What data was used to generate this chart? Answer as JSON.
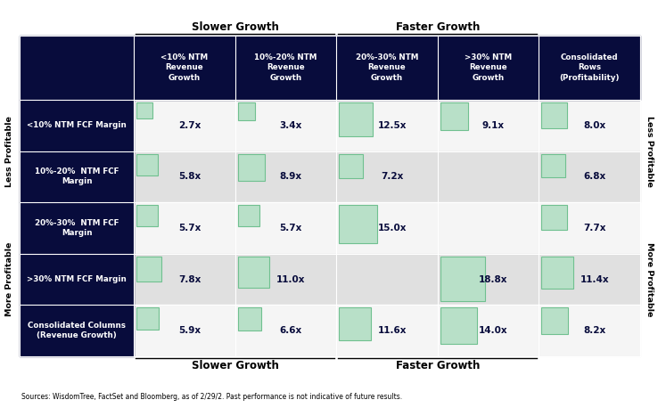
{
  "col_headers": [
    "<10% NTM\nRevenue\nGrowth",
    "10%-20% NTM\nRevenue\nGrowth",
    "20%-30% NTM\nRevenue\nGrowth",
    ">30% NTM\nRevenue\nGrowth",
    "Consolidated\nRows\n(Profitability)"
  ],
  "row_headers": [
    "<10% NTM FCF Margin",
    "10%-20%  NTM FCF\nMargin",
    "20%-30%  NTM FCF\nMargin",
    ">30% NTM FCF Margin",
    "Consolidated Columns\n(Revenue Growth)"
  ],
  "values": [
    [
      2.7,
      3.4,
      12.5,
      9.1,
      8.0
    ],
    [
      5.8,
      8.9,
      7.2,
      null,
      6.8
    ],
    [
      5.7,
      5.7,
      15.0,
      null,
      7.7
    ],
    [
      7.8,
      11.0,
      null,
      18.8,
      11.4
    ],
    [
      5.9,
      6.6,
      11.6,
      14.0,
      8.2
    ]
  ],
  "slower_growth_label_top": "Slower Growth",
  "faster_growth_label_top": "Faster Growth",
  "slower_growth_label_bot": "Slower Growth",
  "faster_growth_label_bot": "Faster Growth",
  "less_profitable_left": "Less Profitable",
  "more_profitable_left": "More Profitable",
  "less_profitable_right": "Less Profitable",
  "more_profitable_right": "More Profitable",
  "footnote": "Sources: WisdomTree, FactSet and Bloomberg, as of 2/29/2. Past performance is not indicative of future results.",
  "dark_navy": "#080c3c",
  "green_light": "#b8e0c8",
  "green_medium": "#70c090",
  "row_bg_white": "#f5f5f5",
  "row_bg_gray": "#e0e0e0",
  "text_navy": "#080c3c",
  "max_val": 18.8
}
